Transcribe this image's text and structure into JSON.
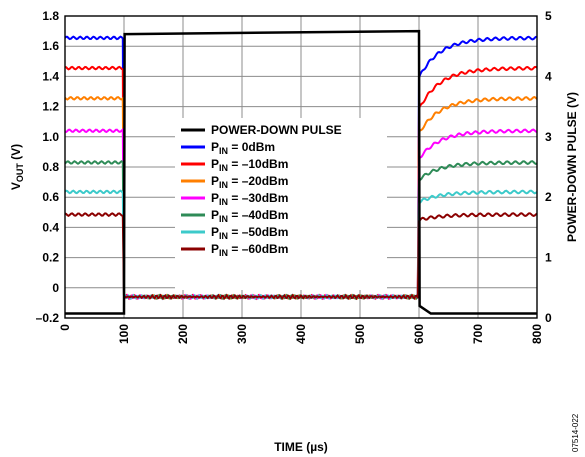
{
  "chart_data": {
    "type": "line",
    "xlabel": "TIME (µs)",
    "ylabel_left_main": "V",
    "ylabel_left_sub": "OUT",
    "ylabel_left_unit": " (V)",
    "ylabel_right": "POWER-DOWN PULSE (V)",
    "figure_id": "07514-022",
    "xlim": [
      0,
      800
    ],
    "ylim_left": [
      -0.2,
      1.8
    ],
    "ylim_right": [
      0,
      5
    ],
    "x_ticks": [
      "0",
      "100",
      "200",
      "300",
      "400",
      "500",
      "600",
      "700",
      "800"
    ],
    "y_ticks_left": [
      "–0.2",
      "0",
      "0.2",
      "0.4",
      "0.6",
      "0.8",
      "1.0",
      "1.2",
      "1.4",
      "1.6",
      "1.8"
    ],
    "y_ticks_right": [
      "0",
      "1",
      "2",
      "3",
      "4",
      "5"
    ],
    "grid": true,
    "legend_position": "center",
    "pulse": {
      "name": "POWER-DOWN PULSE",
      "color": "#000000",
      "axis": "left",
      "x": [
        0,
        100,
        101,
        600,
        601,
        620,
        800
      ],
      "y": [
        -0.17,
        -0.17,
        1.68,
        1.7,
        -0.12,
        -0.17,
        -0.17
      ]
    },
    "series": [
      {
        "prefix": "P",
        "sub": "IN",
        "label": " = 0dBm",
        "color": "#0000ff",
        "level": 1.655,
        "on_start": 1.4
      },
      {
        "prefix": "P",
        "sub": "IN",
        "label": " = –10dBm",
        "color": "#ff0000",
        "level": 1.455,
        "on_start": 1.19
      },
      {
        "prefix": "P",
        "sub": "IN",
        "label": " = –20dBm",
        "color": "#ff7f00",
        "level": 1.255,
        "on_start": 1.03
      },
      {
        "prefix": "P",
        "sub": "IN",
        "label": " = –30dBm",
        "color": "#ff00ff",
        "level": 1.04,
        "on_start": 0.86
      },
      {
        "prefix": "P",
        "sub": "IN",
        "label": " = –40dBm",
        "color": "#2e8b57",
        "level": 0.83,
        "on_start": 0.72
      },
      {
        "prefix": "P",
        "sub": "IN",
        "label": " = –50dBm",
        "color": "#3ccaca",
        "level": 0.635,
        "on_start": 0.57
      },
      {
        "prefix": "P",
        "sub": "IN",
        "label": " = –60dBm",
        "color": "#8b0000",
        "level": 0.485,
        "on_start": 0.45
      }
    ],
    "off_level": -0.06
  }
}
